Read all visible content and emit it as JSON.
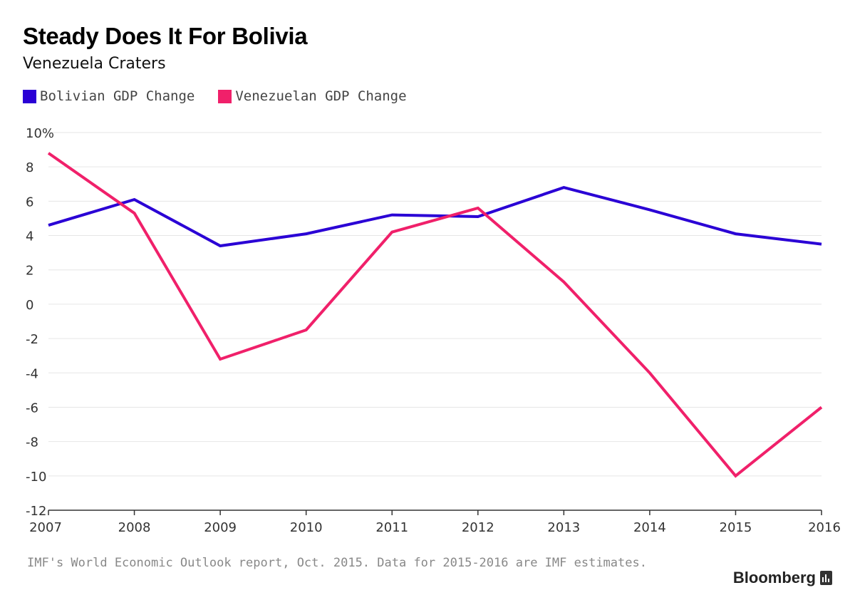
{
  "header": {
    "title": "Steady Does It For Bolivia",
    "subtitle": "Venezuela Craters"
  },
  "footer": {
    "source": "IMF's World Economic Outlook report, Oct. 2015. Data for 2015-2016 are IMF estimates.",
    "brand": "Bloomberg",
    "brand_icon": "bloomberg-terminal-icon"
  },
  "colors": {
    "bolivia": "#2a00d5",
    "venezuela": "#f0206a",
    "grid": "#e6e6e6",
    "axis": "#333333"
  },
  "chart_data": {
    "type": "line",
    "title": "Steady Does It For Bolivia",
    "subtitle": "Venezuela Craters",
    "xlabel": "",
    "ylabel": "",
    "x": [
      "2007",
      "2008",
      "2009",
      "2010",
      "2011",
      "2012",
      "2013",
      "2014",
      "2015",
      "2016"
    ],
    "series": [
      {
        "name": "Bolivian GDP Change",
        "values": [
          4.6,
          6.1,
          3.4,
          4.1,
          5.2,
          5.1,
          6.8,
          5.5,
          4.1,
          3.5
        ]
      },
      {
        "name": "Venezuelan GDP Change",
        "values": [
          8.8,
          5.3,
          -3.2,
          -1.5,
          4.2,
          5.6,
          1.3,
          -4.0,
          -10.0,
          -6.0
        ]
      }
    ],
    "ylim": [
      -12,
      10
    ],
    "yticks": [
      "10%",
      "8",
      "6",
      "4",
      "2",
      "0",
      "-2",
      "-4",
      "-6",
      "-8",
      "-10",
      "-12"
    ],
    "ytick_values": [
      10,
      8,
      6,
      4,
      2,
      0,
      -2,
      -4,
      -6,
      -8,
      -10,
      -12
    ],
    "grid": true,
    "legend_position": "top-left"
  }
}
